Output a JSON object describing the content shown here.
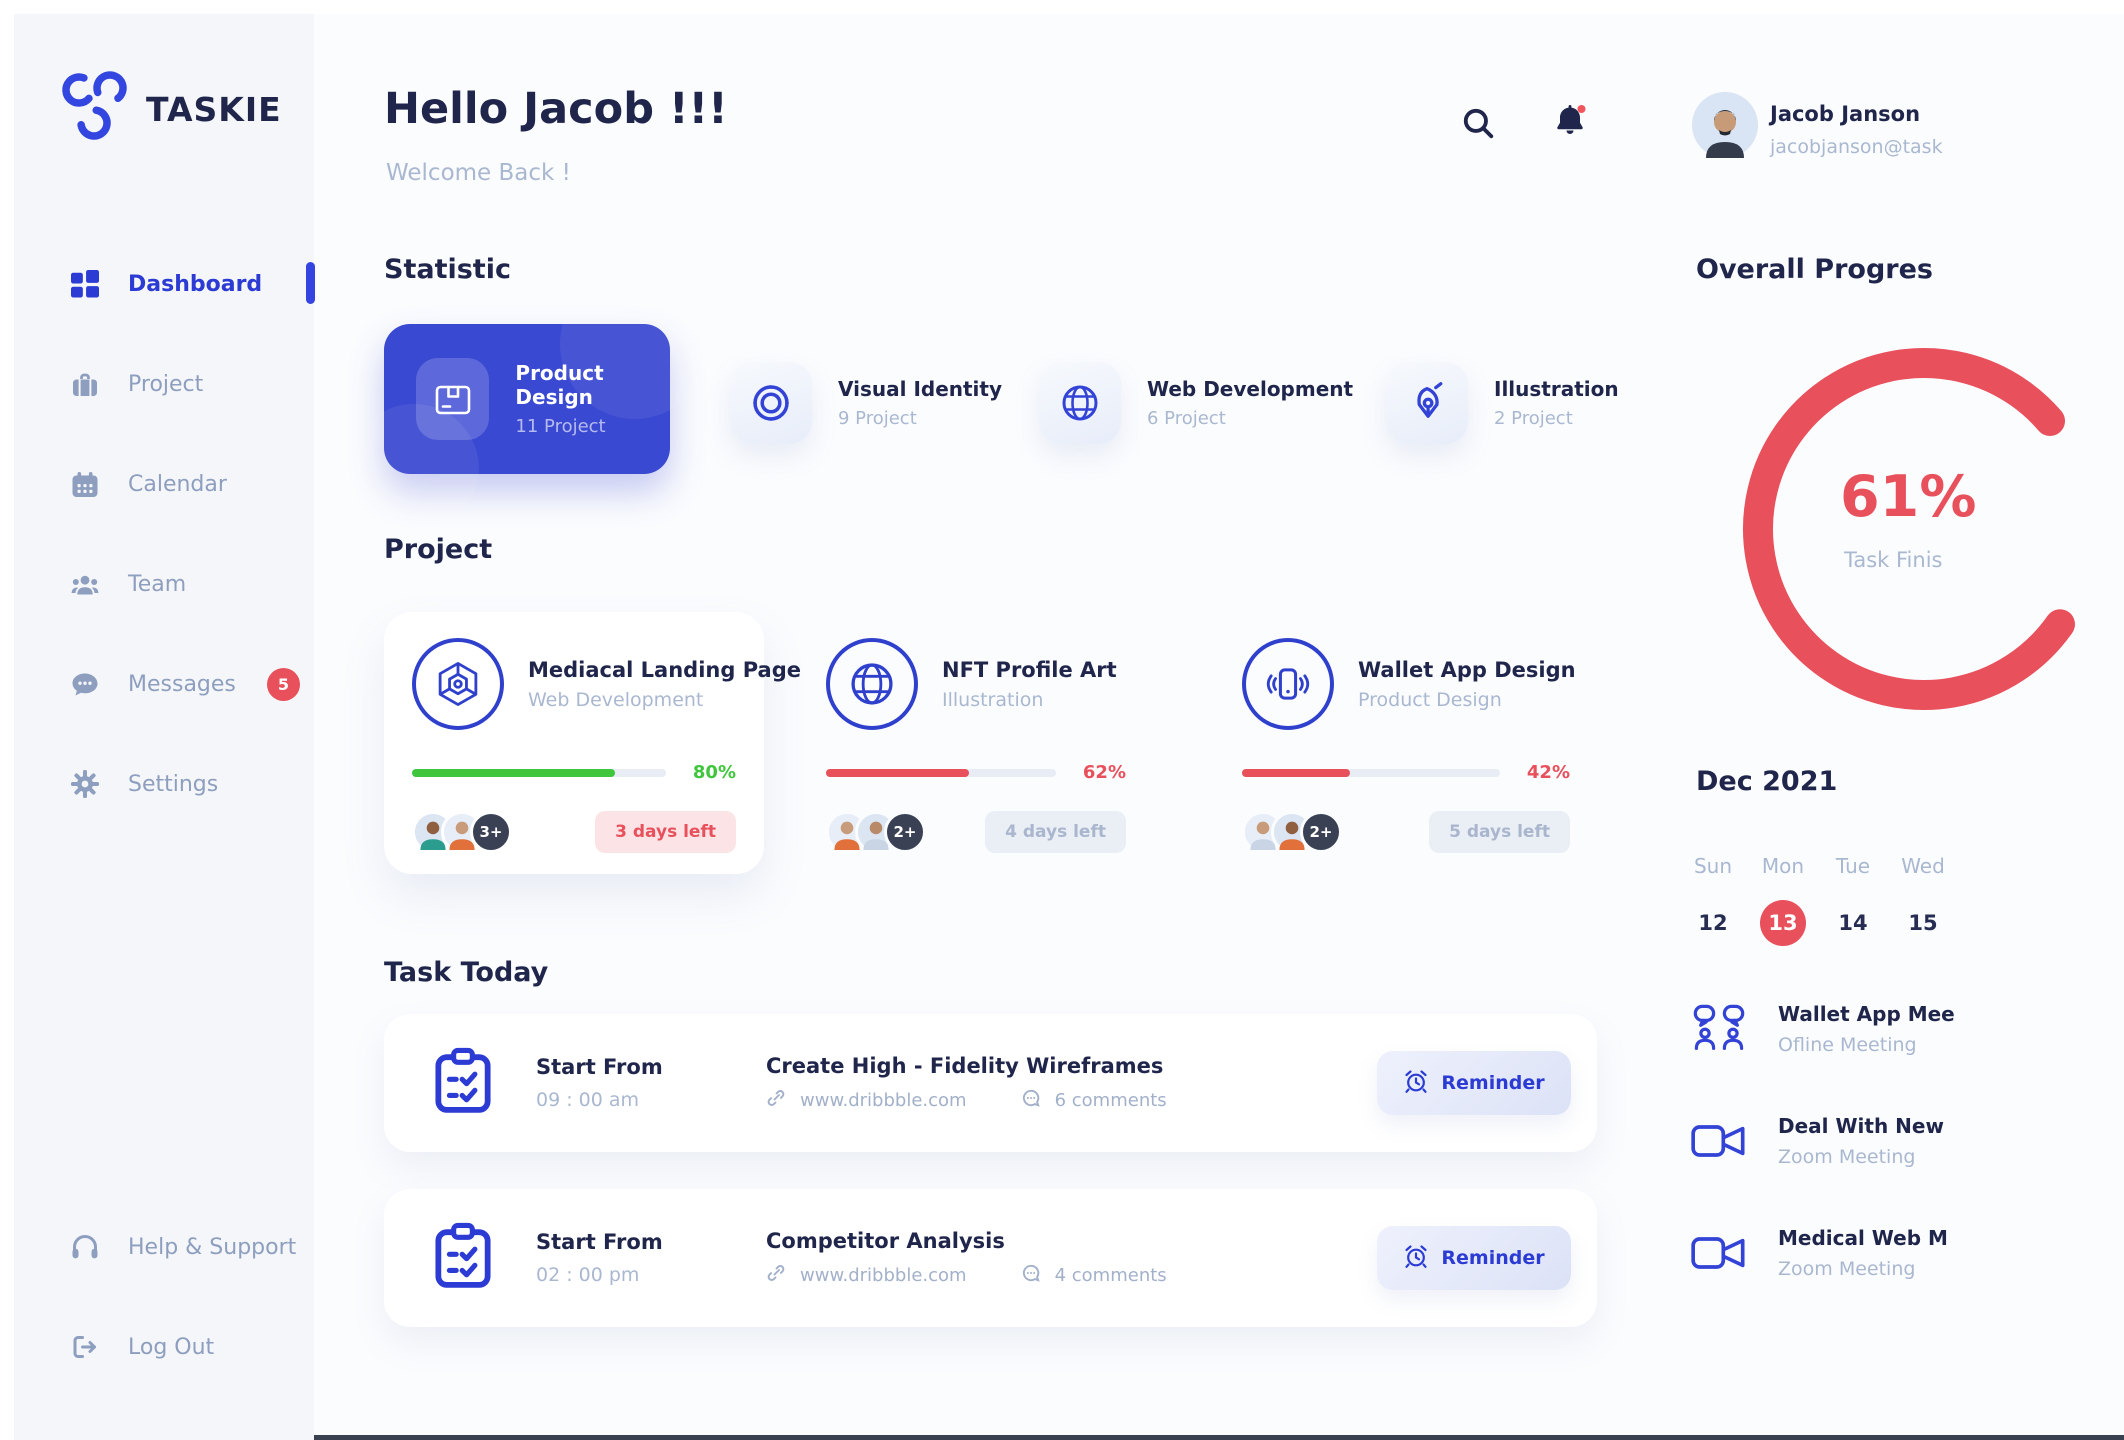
{
  "brand": {
    "name": "TASKIE"
  },
  "sidebar": {
    "items": [
      {
        "label": "Dashboard",
        "icon": "grid-icon",
        "active": true
      },
      {
        "label": "Project",
        "icon": "briefcase-icon"
      },
      {
        "label": "Calendar",
        "icon": "calendar-icon"
      },
      {
        "label": "Team",
        "icon": "team-icon"
      },
      {
        "label": "Messages",
        "icon": "chat-icon",
        "badge": "5"
      },
      {
        "label": "Settings",
        "icon": "gear-icon"
      }
    ],
    "footer_items": [
      {
        "label": "Help & Support",
        "icon": "headset-icon"
      },
      {
        "label": "Log Out",
        "icon": "logout-icon"
      }
    ]
  },
  "header": {
    "greeting": "Hello Jacob !!!",
    "subtitle": "Welcome Back !"
  },
  "statistic": {
    "title": "Statistic",
    "cards": [
      {
        "title": "Product Design",
        "count": "11 Project",
        "icon": "package-icon",
        "highlighted": true
      },
      {
        "title": "Visual Identity",
        "count": "9 Project",
        "icon": "swirl-icon"
      },
      {
        "title": "Web Development",
        "count": "6 Project",
        "icon": "globe-icon"
      },
      {
        "title": "Illustration",
        "count": "2 Project",
        "icon": "pen-nib-icon"
      }
    ]
  },
  "projects": {
    "title": "Project",
    "cards": [
      {
        "name": "Mediacal Landing Page",
        "category": "Web Development",
        "progress": "80%",
        "progress_color": "#3FC63C",
        "extra_members": "3+",
        "days_left": "3 days left",
        "icon": "cube-icon"
      },
      {
        "name": "NFT Profile Art",
        "category": "Illustration",
        "progress": "62%",
        "progress_color": "#E8505B",
        "extra_members": "2+",
        "days_left": "4 days left",
        "icon": "globe-icon"
      },
      {
        "name": "Wallet App Design",
        "category": "Product Design",
        "progress": "42%",
        "progress_color": "#E8505B",
        "extra_members": "2+",
        "days_left": "5 days left",
        "icon": "phone-icon"
      }
    ]
  },
  "tasks": {
    "title": "Task Today",
    "items": [
      {
        "start_label": "Start From",
        "time": "09 : 00 am",
        "name": "Create High - Fidelity Wireframes",
        "link": "www.dribbble.com",
        "comments": "6 comments",
        "action": "Reminder"
      },
      {
        "start_label": "Start From",
        "time": "02 : 00 pm",
        "name": "Competitor Analysis",
        "link": "www.dribbble.com",
        "comments": "4 comments",
        "action": "Reminder"
      }
    ]
  },
  "profile": {
    "name": "Jacob Janson",
    "email": "jacobjanson@task"
  },
  "overall": {
    "title": "Overall Progres",
    "percent": "61%",
    "caption": "Task Finis"
  },
  "calendar": {
    "month": "Dec 2021",
    "days": [
      {
        "dow": "Sun",
        "date": "12"
      },
      {
        "dow": "Mon",
        "date": "13",
        "selected": true
      },
      {
        "dow": "Tue",
        "date": "14"
      },
      {
        "dow": "Wed",
        "date": "15"
      }
    ]
  },
  "meetings": [
    {
      "title": "Wallet App Mee",
      "subtitle": "Ofline Meeting",
      "icon": "people-chat-icon"
    },
    {
      "title": "Deal With New",
      "subtitle": "Zoom Meeting",
      "icon": "video-icon"
    },
    {
      "title": "Medical Web M",
      "subtitle": "Zoom Meeting",
      "icon": "video-icon"
    }
  ],
  "colors": {
    "accent_blue": "#3243D6",
    "navy": "#20264B",
    "muted_text": "#A9B8D0",
    "red": "#E8505B",
    "green": "#3FC63C"
  }
}
